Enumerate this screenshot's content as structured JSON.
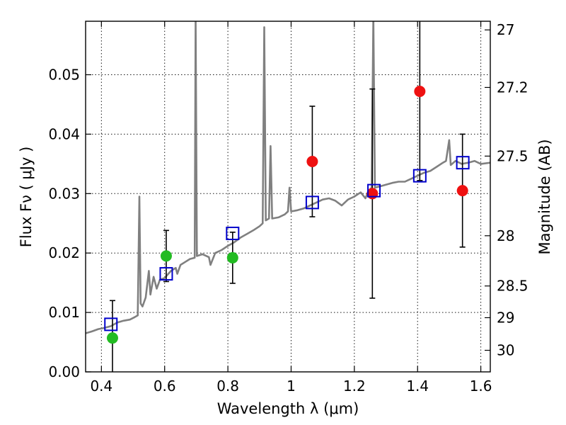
{
  "chart_data": {
    "type": "scatter",
    "xlabel": "Wavelength  λ (μm)",
    "ylabel": "Flux  Fν  ( μJy )",
    "y2label": "Magnitude (AB)",
    "xlim": [
      0.35,
      1.63
    ],
    "ylim": [
      0.0,
      0.059
    ],
    "x_ticks": [
      0.4,
      0.6,
      0.8,
      1.0,
      1.2,
      1.4,
      1.6
    ],
    "x_tick_labels": [
      "0.4",
      "0.6",
      "0.8",
      "1",
      "1.2",
      "1.4",
      "1.6"
    ],
    "y_ticks": [
      0.0,
      0.01,
      0.02,
      0.03,
      0.04,
      0.05
    ],
    "y_tick_labels": [
      "0.00",
      "0.01",
      "0.02",
      "0.03",
      "0.04",
      "0.05"
    ],
    "y2_ticks": [
      {
        "value": 27,
        "label": "27"
      },
      {
        "value": 27.2,
        "label": "27.2"
      },
      {
        "value": 27.5,
        "label": "27.5"
      },
      {
        "value": 28,
        "label": "28"
      },
      {
        "value": 28.5,
        "label": "28.5"
      },
      {
        "value": 29,
        "label": "29"
      },
      {
        "value": 30,
        "label": "30"
      }
    ],
    "grid": true,
    "colors": {
      "spectrum": "#808080",
      "green_points": "#22bb22",
      "red_points": "#ee1111",
      "model_squares": "#0000cc",
      "error_bars": "#000000"
    },
    "series": [
      {
        "kind": "line",
        "points": [
          [
            0.35,
            0.0065
          ],
          [
            0.37,
            0.0068
          ],
          [
            0.39,
            0.0072
          ],
          [
            0.41,
            0.0074
          ],
          [
            0.43,
            0.0077
          ],
          [
            0.45,
            0.0083
          ],
          [
            0.47,
            0.0086
          ],
          [
            0.49,
            0.0088
          ],
          [
            0.505,
            0.0092
          ],
          [
            0.515,
            0.0095
          ],
          [
            0.52,
            0.0295
          ],
          [
            0.524,
            0.0115
          ],
          [
            0.53,
            0.011
          ],
          [
            0.54,
            0.0125
          ],
          [
            0.55,
            0.017
          ],
          [
            0.555,
            0.013
          ],
          [
            0.565,
            0.016
          ],
          [
            0.575,
            0.014
          ],
          [
            0.585,
            0.0155
          ],
          [
            0.6,
            0.0158
          ],
          [
            0.62,
            0.017
          ],
          [
            0.635,
            0.0175
          ],
          [
            0.64,
            0.0165
          ],
          [
            0.65,
            0.018
          ],
          [
            0.665,
            0.0185
          ],
          [
            0.68,
            0.019
          ],
          [
            0.695,
            0.0192
          ],
          [
            0.698,
            0.06
          ],
          [
            0.702,
            0.0195
          ],
          [
            0.72,
            0.0198
          ],
          [
            0.74,
            0.0193
          ],
          [
            0.745,
            0.018
          ],
          [
            0.76,
            0.02
          ],
          [
            0.78,
            0.0205
          ],
          [
            0.8,
            0.0212
          ],
          [
            0.82,
            0.0218
          ],
          [
            0.84,
            0.0226
          ],
          [
            0.86,
            0.0232
          ],
          [
            0.88,
            0.0238
          ],
          [
            0.9,
            0.0245
          ],
          [
            0.91,
            0.025
          ],
          [
            0.915,
            0.058
          ],
          [
            0.92,
            0.0255
          ],
          [
            0.93,
            0.0258
          ],
          [
            0.935,
            0.038
          ],
          [
            0.94,
            0.0258
          ],
          [
            0.96,
            0.026
          ],
          [
            0.98,
            0.0265
          ],
          [
            0.99,
            0.027
          ],
          [
            0.995,
            0.031
          ],
          [
            1.0,
            0.027
          ],
          [
            1.02,
            0.0272
          ],
          [
            1.04,
            0.0275
          ],
          [
            1.06,
            0.028
          ],
          [
            1.08,
            0.0285
          ],
          [
            1.1,
            0.029
          ],
          [
            1.12,
            0.0292
          ],
          [
            1.14,
            0.0288
          ],
          [
            1.16,
            0.028
          ],
          [
            1.18,
            0.029
          ],
          [
            1.2,
            0.0295
          ],
          [
            1.22,
            0.0302
          ],
          [
            1.235,
            0.0292
          ],
          [
            1.245,
            0.0305
          ],
          [
            1.255,
            0.031
          ],
          [
            1.26,
            0.06
          ],
          [
            1.265,
            0.031
          ],
          [
            1.28,
            0.0312
          ],
          [
            1.3,
            0.0315
          ],
          [
            1.32,
            0.0318
          ],
          [
            1.34,
            0.032
          ],
          [
            1.36,
            0.032
          ],
          [
            1.38,
            0.0325
          ],
          [
            1.4,
            0.033
          ],
          [
            1.42,
            0.0335
          ],
          [
            1.44,
            0.0338
          ],
          [
            1.46,
            0.0345
          ],
          [
            1.48,
            0.0352
          ],
          [
            1.49,
            0.0355
          ],
          [
            1.5,
            0.039
          ],
          [
            1.505,
            0.0348
          ],
          [
            1.52,
            0.0355
          ],
          [
            1.54,
            0.035
          ],
          [
            1.56,
            0.0352
          ],
          [
            1.58,
            0.0355
          ],
          [
            1.6,
            0.035
          ],
          [
            1.63,
            0.0352
          ]
        ]
      },
      {
        "kind": "points",
        "color": "green",
        "points": [
          {
            "x": 0.435,
            "y": 0.0057,
            "err": 0.0063
          },
          {
            "x": 0.605,
            "y": 0.0195,
            "err": 0.0043
          },
          {
            "x": 0.815,
            "y": 0.0192,
            "err": 0.0043
          }
        ]
      },
      {
        "kind": "points",
        "color": "red",
        "points": [
          {
            "x": 1.067,
            "y": 0.0354,
            "err": 0.0093
          },
          {
            "x": 1.257,
            "y": 0.03,
            "err": 0.0176
          },
          {
            "x": 1.407,
            "y": 0.0472,
            "err": 0.015
          },
          {
            "x": 1.542,
            "y": 0.0305,
            "err": 0.0095
          }
        ]
      },
      {
        "kind": "squares",
        "color": "blue",
        "points": [
          {
            "x": 0.43,
            "y": 0.008
          },
          {
            "x": 0.605,
            "y": 0.0165
          },
          {
            "x": 0.815,
            "y": 0.0233
          },
          {
            "x": 1.067,
            "y": 0.0285
          },
          {
            "x": 1.262,
            "y": 0.0305
          },
          {
            "x": 1.407,
            "y": 0.033
          },
          {
            "x": 1.543,
            "y": 0.0352
          }
        ]
      }
    ]
  }
}
